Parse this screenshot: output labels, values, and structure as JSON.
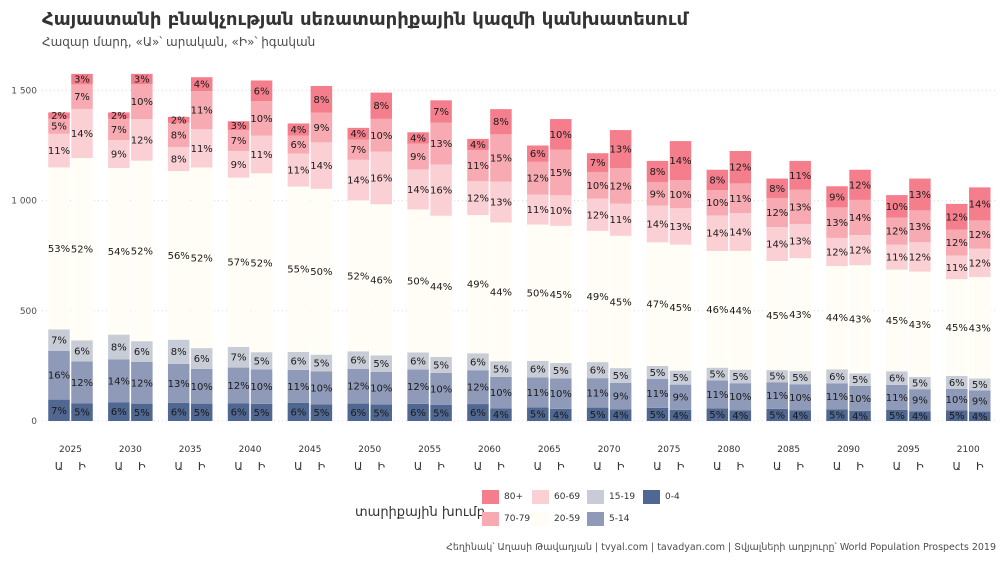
{
  "title": "Հայաստանի բնակչության սեռատարիքային կազմի կանխատեսում",
  "subtitle": "Հազար մարդ, «Ա»՝ արական, «Ի»՝ իգական",
  "caption": "Հեղինակ՝ Աղասի Թավադյան  |  tvyal.com  |  tavadyan.com  |  Տվյալների աղբյուրը՝ World Population Prospects 2019",
  "legend": {
    "title": "տարիքային խումբ",
    "items": [
      {
        "label": "80+",
        "color": "#f47e8c"
      },
      {
        "label": "70-79",
        "color": "#f8aab2"
      },
      {
        "label": "60-69",
        "color": "#fbd0d5"
      },
      {
        "label": "20-59",
        "color": "#fffdf5"
      },
      {
        "label": "15-19",
        "color": "#c8ccd6"
      },
      {
        "label": "5-14",
        "color": "#8e9ab8"
      },
      {
        "label": "0-4",
        "color": "#4f6791"
      }
    ]
  },
  "chart_data": {
    "type": "bar",
    "stacked": true,
    "y_ticks": [
      "0",
      "500",
      "1 000",
      "1 500"
    ],
    "ylim": [
      0,
      1600
    ],
    "sex_labels": [
      "Ա",
      "Ի"
    ],
    "years": [
      "2025",
      "2030",
      "2035",
      "2040",
      "2045",
      "2050",
      "2055",
      "2060",
      "2065",
      "2070",
      "2075",
      "2080",
      "2085",
      "2090",
      "2095",
      "2100"
    ],
    "age_groups": [
      "0-4",
      "5-14",
      "15-19",
      "20-59",
      "60-69",
      "70-79",
      "80+"
    ],
    "bars": [
      {
        "year": "2025",
        "sex": "Ա",
        "total": 1400,
        "pct": [
          "7%",
          "16%",
          "7%",
          "53%",
          "11%",
          "5%",
          "2%"
        ]
      },
      {
        "year": "2025",
        "sex": "Ի",
        "total": 1575,
        "pct": [
          "5%",
          "12%",
          "6%",
          "52%",
          "14%",
          "7%",
          "3%"
        ]
      },
      {
        "year": "2030",
        "sex": "Ա",
        "total": 1400,
        "pct": [
          "6%",
          "14%",
          "8%",
          "54%",
          "9%",
          "7%",
          "2%"
        ]
      },
      {
        "year": "2030",
        "sex": "Ի",
        "total": 1575,
        "pct": [
          "5%",
          "12%",
          "6%",
          "52%",
          "12%",
          "10%",
          "3%"
        ]
      },
      {
        "year": "2035",
        "sex": "Ա",
        "total": 1380,
        "pct": [
          "6%",
          "13%",
          "8%",
          "56%",
          "8%",
          "8%",
          "2%"
        ]
      },
      {
        "year": "2035",
        "sex": "Ի",
        "total": 1560,
        "pct": [
          "5%",
          "10%",
          "6%",
          "52%",
          "11%",
          "11%",
          "4%"
        ]
      },
      {
        "year": "2040",
        "sex": "Ա",
        "total": 1360,
        "pct": [
          "6%",
          "12%",
          "7%",
          "57%",
          "9%",
          "7%",
          "3%"
        ]
      },
      {
        "year": "2040",
        "sex": "Ի",
        "total": 1545,
        "pct": [
          "5%",
          "10%",
          "5%",
          "52%",
          "11%",
          "10%",
          "6%"
        ]
      },
      {
        "year": "2045",
        "sex": "Ա",
        "total": 1350,
        "pct": [
          "6%",
          "11%",
          "6%",
          "55%",
          "11%",
          "6%",
          "4%"
        ]
      },
      {
        "year": "2045",
        "sex": "Ի",
        "total": 1520,
        "pct": [
          "5%",
          "10%",
          "5%",
          "50%",
          "14%",
          "9%",
          "8%"
        ]
      },
      {
        "year": "2050",
        "sex": "Ա",
        "total": 1330,
        "pct": [
          "6%",
          "12%",
          "6%",
          "52%",
          "14%",
          "7%",
          "4%"
        ]
      },
      {
        "year": "2050",
        "sex": "Ի",
        "total": 1490,
        "pct": [
          "5%",
          "10%",
          "5%",
          "46%",
          "16%",
          "10%",
          "8%"
        ]
      },
      {
        "year": "2055",
        "sex": "Ա",
        "total": 1310,
        "pct": [
          "6%",
          "12%",
          "6%",
          "50%",
          "14%",
          "9%",
          "4%"
        ]
      },
      {
        "year": "2055",
        "sex": "Ի",
        "total": 1455,
        "pct": [
          "5%",
          "10%",
          "5%",
          "44%",
          "16%",
          "13%",
          "7%"
        ]
      },
      {
        "year": "2060",
        "sex": "Ա",
        "total": 1280,
        "pct": [
          "6%",
          "12%",
          "6%",
          "49%",
          "12%",
          "11%",
          "4%"
        ]
      },
      {
        "year": "2060",
        "sex": "Ի",
        "total": 1415,
        "pct": [
          "4%",
          "10%",
          "5%",
          "44%",
          "13%",
          "15%",
          "8%"
        ]
      },
      {
        "year": "2065",
        "sex": "Ա",
        "total": 1250,
        "pct": [
          "5%",
          "11%",
          "6%",
          "50%",
          "11%",
          "12%",
          "6%"
        ]
      },
      {
        "year": "2065",
        "sex": "Ի",
        "total": 1370,
        "pct": [
          "4%",
          "10%",
          "5%",
          "45%",
          "10%",
          "15%",
          "10%"
        ]
      },
      {
        "year": "2070",
        "sex": "Ա",
        "total": 1215,
        "pct": [
          "5%",
          "11%",
          "6%",
          "49%",
          "12%",
          "10%",
          "7%"
        ]
      },
      {
        "year": "2070",
        "sex": "Ի",
        "total": 1320,
        "pct": [
          "4%",
          "9%",
          "5%",
          "45%",
          "11%",
          "12%",
          "13%"
        ]
      },
      {
        "year": "2075",
        "sex": "Ա",
        "total": 1180,
        "pct": [
          "5%",
          "11%",
          "5%",
          "47%",
          "14%",
          "9%",
          "8%"
        ]
      },
      {
        "year": "2075",
        "sex": "Ի",
        "total": 1270,
        "pct": [
          "4%",
          "9%",
          "5%",
          "45%",
          "13%",
          "10%",
          "14%"
        ]
      },
      {
        "year": "2080",
        "sex": "Ա",
        "total": 1140,
        "pct": [
          "5%",
          "11%",
          "5%",
          "46%",
          "14%",
          "10%",
          "8%"
        ]
      },
      {
        "year": "2080",
        "sex": "Ի",
        "total": 1225,
        "pct": [
          "4%",
          "10%",
          "5%",
          "44%",
          "14%",
          "11%",
          "12%"
        ]
      },
      {
        "year": "2085",
        "sex": "Ա",
        "total": 1100,
        "pct": [
          "5%",
          "11%",
          "5%",
          "45%",
          "14%",
          "12%",
          "8%"
        ]
      },
      {
        "year": "2085",
        "sex": "Ի",
        "total": 1180,
        "pct": [
          "4%",
          "10%",
          "5%",
          "43%",
          "13%",
          "13%",
          "11%"
        ]
      },
      {
        "year": "2090",
        "sex": "Ա",
        "total": 1065,
        "pct": [
          "5%",
          "11%",
          "6%",
          "44%",
          "12%",
          "13%",
          "9%"
        ]
      },
      {
        "year": "2090",
        "sex": "Ի",
        "total": 1140,
        "pct": [
          "4%",
          "10%",
          "5%",
          "43%",
          "12%",
          "14%",
          "12%"
        ]
      },
      {
        "year": "2095",
        "sex": "Ա",
        "total": 1025,
        "pct": [
          "5%",
          "11%",
          "6%",
          "45%",
          "11%",
          "12%",
          "10%"
        ]
      },
      {
        "year": "2095",
        "sex": "Ի",
        "total": 1100,
        "pct": [
          "4%",
          "9%",
          "5%",
          "43%",
          "12%",
          "13%",
          "13%"
        ]
      },
      {
        "year": "2100",
        "sex": "Ա",
        "total": 985,
        "pct": [
          "5%",
          "10%",
          "6%",
          "45%",
          "11%",
          "12%",
          "12%"
        ]
      },
      {
        "year": "2100",
        "sex": "Ի",
        "total": 1060,
        "pct": [
          "4%",
          "9%",
          "5%",
          "43%",
          "12%",
          "12%",
          "14%"
        ]
      }
    ]
  }
}
